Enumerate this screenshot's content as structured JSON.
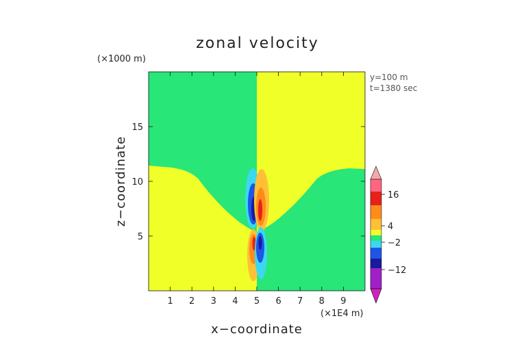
{
  "chart_data": {
    "type": "heatmap",
    "title": "zonal velocity",
    "xlabel": "x−coordinate",
    "ylabel": "z−coordinate",
    "x_unit": "(×1E4 m)",
    "y_unit": "(×1000 m)",
    "annotation": [
      "y=100 m",
      "t=1380 sec"
    ],
    "xlim": [
      0,
      10
    ],
    "ylim": [
      0,
      20
    ],
    "x_ticks": [
      1,
      2,
      3,
      4,
      5,
      6,
      7,
      8,
      9
    ],
    "y_ticks": [
      5,
      10,
      15
    ],
    "colorbar_labels": [
      16,
      4,
      -2,
      -12
    ],
    "colors": {
      "positive_region": "#f0ff28",
      "negative_region": "#28e678",
      "light_orange": "#ffc036",
      "orange": "#ff8c1a",
      "red": "#e8201a",
      "light_blue": "#3cd8f0",
      "blue": "#1d56e6",
      "dark_blue": "#1a1aa0"
    },
    "features": [
      {
        "x": 4.75,
        "z": 7.5,
        "sign": "negative",
        "peak_band": "dark_blue"
      },
      {
        "x": 5.25,
        "z": 7.5,
        "sign": "positive",
        "peak_band": "red"
      },
      {
        "x": 4.75,
        "z": 3.8,
        "sign": "positive",
        "peak_band": "red"
      },
      {
        "x": 5.25,
        "z": 3.8,
        "sign": "negative",
        "peak_band": "blue"
      }
    ]
  }
}
